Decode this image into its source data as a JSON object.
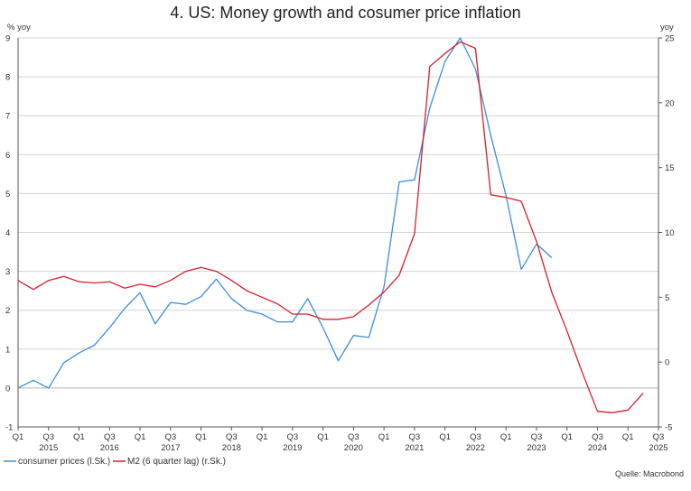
{
  "chart_data": {
    "type": "line",
    "title": "4. US: Money growth and cosumer price inflation",
    "left_axis_label": "% yoy",
    "right_axis_label": "yoy",
    "left_ylim": [
      -1,
      9
    ],
    "right_ylim": [
      -5,
      25
    ],
    "left_ticks": [
      -1,
      0,
      1,
      2,
      3,
      4,
      5,
      6,
      7,
      8,
      9
    ],
    "right_ticks": [
      -5,
      0,
      5,
      10,
      15,
      20,
      25
    ],
    "x_range": [
      2015.0,
      2025.5
    ],
    "quarter_ticks": [
      {
        "x": 2015.0,
        "label": "Q1"
      },
      {
        "x": 2015.5,
        "label": "Q3"
      },
      {
        "x": 2016.0,
        "label": "Q1"
      },
      {
        "x": 2016.5,
        "label": "Q3"
      },
      {
        "x": 2017.0,
        "label": "Q1"
      },
      {
        "x": 2017.5,
        "label": "Q3"
      },
      {
        "x": 2018.0,
        "label": "Q1"
      },
      {
        "x": 2018.5,
        "label": "Q3"
      },
      {
        "x": 2019.0,
        "label": "Q1"
      },
      {
        "x": 2019.5,
        "label": "Q3"
      },
      {
        "x": 2020.0,
        "label": "Q1"
      },
      {
        "x": 2020.5,
        "label": "Q3"
      },
      {
        "x": 2021.0,
        "label": "Q1"
      },
      {
        "x": 2021.5,
        "label": "Q3"
      },
      {
        "x": 2022.0,
        "label": "Q1"
      },
      {
        "x": 2022.5,
        "label": "Q3"
      },
      {
        "x": 2023.0,
        "label": "Q1"
      },
      {
        "x": 2023.5,
        "label": "Q3"
      },
      {
        "x": 2024.0,
        "label": "Q1"
      },
      {
        "x": 2024.5,
        "label": "Q3"
      },
      {
        "x": 2025.0,
        "label": "Q1"
      },
      {
        "x": 2025.5,
        "label": "Q3"
      }
    ],
    "year_labels": [
      {
        "x": 2015.5,
        "label": "2015"
      },
      {
        "x": 2016.5,
        "label": "2016"
      },
      {
        "x": 2017.5,
        "label": "2017"
      },
      {
        "x": 2018.5,
        "label": "2018"
      },
      {
        "x": 2019.5,
        "label": "2019"
      },
      {
        "x": 2020.5,
        "label": "2020"
      },
      {
        "x": 2021.5,
        "label": "2021"
      },
      {
        "x": 2022.5,
        "label": "2022"
      },
      {
        "x": 2023.5,
        "label": "2023"
      },
      {
        "x": 2024.5,
        "label": "2024"
      },
      {
        "x": 2025.5,
        "label": "2025"
      }
    ],
    "series": [
      {
        "name": "consumer prices (l.Sk.)",
        "axis": "left",
        "color": "#3b8de0",
        "x": [
          2015.0,
          2015.25,
          2015.5,
          2015.75,
          2016.0,
          2016.25,
          2016.5,
          2016.75,
          2017.0,
          2017.25,
          2017.5,
          2017.75,
          2018.0,
          2018.25,
          2018.5,
          2018.75,
          2019.0,
          2019.25,
          2019.5,
          2019.75,
          2020.0,
          2020.25,
          2020.5,
          2020.75,
          2021.0,
          2021.25,
          2021.5,
          2021.75,
          2022.0,
          2022.25,
          2022.5,
          2022.75,
          2023.0,
          2023.25,
          2023.5,
          2023.75
        ],
        "values": [
          0.0,
          0.2,
          0.0,
          0.65,
          0.9,
          1.1,
          1.55,
          2.05,
          2.45,
          1.65,
          2.2,
          2.15,
          2.35,
          2.8,
          2.3,
          2.0,
          1.9,
          1.7,
          1.7,
          2.3,
          1.55,
          0.7,
          1.35,
          1.3,
          2.6,
          5.3,
          5.35,
          7.2,
          8.4,
          9.0,
          8.2,
          6.5,
          4.95,
          3.05,
          3.7,
          3.35
        ]
      },
      {
        "name": "M2 (6 quarter lag) (r.Sk.)",
        "axis": "right",
        "color": "#d81e2a",
        "x": [
          2015.0,
          2015.25,
          2015.5,
          2015.75,
          2016.0,
          2016.25,
          2016.5,
          2016.75,
          2017.0,
          2017.25,
          2017.5,
          2017.75,
          2018.0,
          2018.25,
          2018.5,
          2018.75,
          2019.0,
          2019.25,
          2019.5,
          2019.75,
          2020.0,
          2020.25,
          2020.5,
          2020.75,
          2021.0,
          2021.25,
          2021.5,
          2021.75,
          2022.0,
          2022.25,
          2022.5,
          2022.75,
          2023.0,
          2023.25,
          2023.5,
          2023.75,
          2024.0,
          2024.25,
          2024.5,
          2024.75,
          2025.0,
          2025.25,
          2025.5
        ],
        "values": [
          6.3,
          5.6,
          6.3,
          6.6,
          6.2,
          6.1,
          6.2,
          5.7,
          6.0,
          5.8,
          6.3,
          7.0,
          7.3,
          7.0,
          6.3,
          5.5,
          5.0,
          4.5,
          3.7,
          3.7,
          3.3,
          3.3,
          3.5,
          4.4,
          5.4,
          6.7,
          9.9,
          22.8,
          23.8,
          24.7,
          24.2,
          12.9,
          12.7,
          12.4,
          9.3,
          5.4,
          2.4,
          -0.8,
          -3.8,
          -3.9,
          -3.7,
          -2.4,
          null
        ]
      }
    ],
    "legend": [
      {
        "label": "consumer prices (l.Sk.)",
        "color": "#3b8de0"
      },
      {
        "label": "M2 (6 quarter lag) (r.Sk.)",
        "color": "#d81e2a"
      }
    ],
    "legend_position": "bottom-left",
    "source": "Quelle: Macrobond",
    "grid": true
  }
}
